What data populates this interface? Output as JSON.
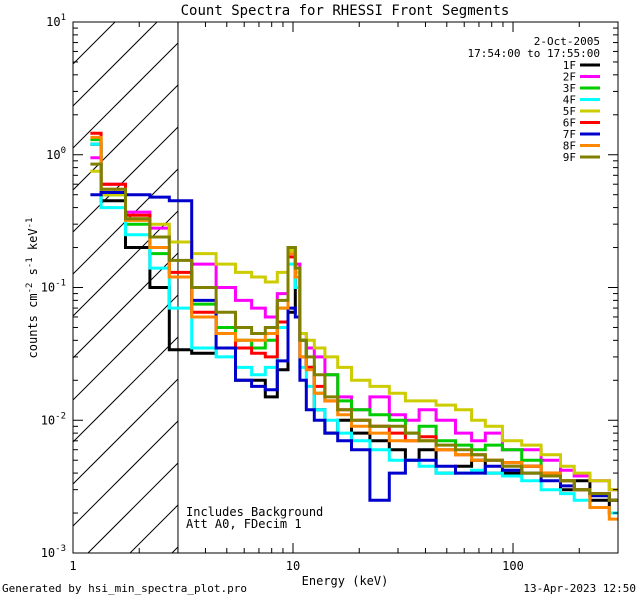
{
  "chart_data": {
    "type": "line",
    "title": "Count Spectra for RHESSI Front Segments",
    "xlabel": "Energy (keV)",
    "ylabel": "counts cm^-2 s^-1 keV^-1",
    "xscale": "log",
    "yscale": "log",
    "xlim": [
      1,
      300
    ],
    "ylim": [
      0.001,
      10
    ],
    "x_ticks": [
      {
        "v": 1,
        "label": "1"
      },
      {
        "v": 10,
        "label": "10"
      },
      {
        "v": 100,
        "label": "100"
      }
    ],
    "y_ticks": [
      {
        "v": 0.001,
        "base": "10",
        "exp": "-3"
      },
      {
        "v": 0.01,
        "base": "10",
        "exp": "-2"
      },
      {
        "v": 0.1,
        "base": "10",
        "exp": "-1"
      },
      {
        "v": 1,
        "base": "10",
        "exp": "0"
      },
      {
        "v": 10,
        "base": "10",
        "exp": "1"
      }
    ],
    "date": "2-Oct-2005",
    "time_range": "17:54:00 to 17:55:00",
    "annotation_lines": [
      "Includes Background",
      "Att A0, FDecim 1"
    ],
    "shaded_region": {
      "xmin": 1,
      "xmax": 3,
      "style": "hatched"
    },
    "series": [
      {
        "name": "1F",
        "color": "#000000",
        "x": [
          1.2,
          1.5,
          2,
          2.5,
          3,
          4,
          5,
          6,
          7,
          8,
          9,
          10,
          10.5,
          11,
          12,
          13,
          15,
          17,
          20,
          25,
          30,
          35,
          40,
          50,
          60,
          70,
          80,
          100,
          120,
          150,
          180,
          200,
          250,
          300
        ],
        "y": [
          1.2,
          0.45,
          0.2,
          0.1,
          0.034,
          0.032,
          0.035,
          0.02,
          0.02,
          0.015,
          0.024,
          0.065,
          0.12,
          0.04,
          0.025,
          0.012,
          0.008,
          0.01,
          0.008,
          0.007,
          0.006,
          0.005,
          0.006,
          0.004,
          0.0045,
          0.005,
          0.004,
          0.004,
          0.0045,
          0.004,
          0.003,
          0.0035,
          0.0025,
          0.002
        ]
      },
      {
        "name": "2F",
        "color": "#ff00ff",
        "x": [
          1.2,
          1.5,
          2,
          2.5,
          3,
          4,
          5,
          6,
          7,
          8,
          9,
          10,
          10.5,
          11,
          12,
          13,
          15,
          17,
          20,
          25,
          30,
          35,
          40,
          50,
          60,
          70,
          80,
          100,
          120,
          150,
          180,
          200,
          250,
          300
        ],
        "y": [
          0.95,
          0.6,
          0.37,
          0.28,
          0.22,
          0.15,
          0.1,
          0.08,
          0.07,
          0.06,
          0.09,
          0.2,
          0.15,
          0.045,
          0.035,
          0.03,
          0.022,
          0.015,
          0.012,
          0.015,
          0.011,
          0.01,
          0.012,
          0.01,
          0.008,
          0.007,
          0.008,
          0.006,
          0.006,
          0.005,
          0.0042,
          0.0038,
          0.0035,
          0.003
        ]
      },
      {
        "name": "3F",
        "color": "#00cc00",
        "x": [
          1.2,
          1.5,
          2,
          2.5,
          3,
          4,
          5,
          6,
          7,
          8,
          9,
          10,
          10.5,
          11,
          12,
          13,
          15,
          17,
          20,
          25,
          30,
          35,
          40,
          50,
          60,
          70,
          80,
          100,
          120,
          150,
          180,
          200,
          250,
          300
        ],
        "y": [
          1.3,
          0.5,
          0.3,
          0.18,
          0.12,
          0.075,
          0.05,
          0.04,
          0.035,
          0.04,
          0.07,
          0.2,
          0.14,
          0.04,
          0.025,
          0.016,
          0.022,
          0.014,
          0.012,
          0.011,
          0.01,
          0.008,
          0.009,
          0.007,
          0.0065,
          0.006,
          0.0065,
          0.006,
          0.005,
          0.004,
          0.0035,
          0.003,
          0.0028,
          0.0025
        ]
      },
      {
        "name": "4F",
        "color": "#00ffff",
        "x": [
          1.2,
          1.5,
          2,
          2.5,
          3,
          4,
          5,
          6,
          7,
          8,
          9,
          10,
          10.5,
          11,
          12,
          13,
          15,
          17,
          20,
          25,
          30,
          35,
          40,
          50,
          60,
          70,
          80,
          100,
          120,
          150,
          180,
          200,
          250,
          300
        ],
        "y": [
          1.2,
          0.4,
          0.25,
          0.14,
          0.07,
          0.035,
          0.03,
          0.025,
          0.022,
          0.025,
          0.05,
          0.15,
          0.1,
          0.025,
          0.018,
          0.012,
          0.01,
          0.008,
          0.007,
          0.006,
          0.005,
          0.005,
          0.0045,
          0.004,
          0.004,
          0.0042,
          0.004,
          0.0038,
          0.0035,
          0.003,
          0.0028,
          0.0025,
          0.0022,
          0.002
        ]
      },
      {
        "name": "5F",
        "color": "#cccc00",
        "x": [
          1.2,
          1.5,
          2,
          2.5,
          3,
          4,
          5,
          6,
          7,
          8,
          9,
          10,
          10.5,
          11,
          12,
          13,
          15,
          17,
          20,
          25,
          30,
          35,
          40,
          50,
          60,
          70,
          80,
          100,
          120,
          150,
          180,
          200,
          250,
          300
        ],
        "y": [
          0.75,
          0.5,
          0.33,
          0.3,
          0.22,
          0.18,
          0.15,
          0.13,
          0.12,
          0.11,
          0.13,
          0.19,
          0.13,
          0.045,
          0.04,
          0.035,
          0.03,
          0.025,
          0.02,
          0.018,
          0.016,
          0.014,
          0.014,
          0.013,
          0.012,
          0.01,
          0.009,
          0.007,
          0.0065,
          0.0055,
          0.0045,
          0.004,
          0.0035,
          0.003
        ]
      },
      {
        "name": "6F",
        "color": "#ff0000",
        "x": [
          1.2,
          1.5,
          2,
          2.5,
          3,
          4,
          5,
          6,
          7,
          8,
          9,
          10,
          10.5,
          11,
          12,
          13,
          15,
          17,
          20,
          25,
          30,
          35,
          40,
          50,
          60,
          70,
          80,
          100,
          120,
          150,
          180,
          200,
          250,
          300
        ],
        "y": [
          1.45,
          0.6,
          0.35,
          0.2,
          0.13,
          0.065,
          0.045,
          0.035,
          0.032,
          0.03,
          0.055,
          0.17,
          0.12,
          0.03,
          0.025,
          0.018,
          0.014,
          0.012,
          0.01,
          0.009,
          0.008,
          0.007,
          0.0075,
          0.006,
          0.0055,
          0.0055,
          0.005,
          0.0048,
          0.0045,
          0.004,
          0.0035,
          0.003,
          0.0028,
          0.0025
        ]
      },
      {
        "name": "7F",
        "color": "#0000cc",
        "x": [
          1.2,
          1.5,
          2,
          2.5,
          3,
          4,
          5,
          6,
          7,
          8,
          9,
          10,
          10.5,
          11,
          12,
          13,
          15,
          17,
          20,
          25,
          30,
          35,
          40,
          50,
          60,
          70,
          80,
          100,
          120,
          150,
          180,
          200,
          250,
          300
        ],
        "y": [
          0.5,
          0.52,
          0.5,
          0.48,
          0.45,
          0.08,
          0.035,
          0.02,
          0.018,
          0.017,
          0.028,
          0.07,
          0.06,
          0.02,
          0.012,
          0.01,
          0.008,
          0.007,
          0.006,
          0.0025,
          0.004,
          0.005,
          0.005,
          0.0045,
          0.004,
          0.004,
          0.0045,
          0.0042,
          0.004,
          0.0035,
          0.0032,
          0.003,
          0.0027,
          0.0025
        ]
      },
      {
        "name": "8F",
        "color": "#ff8800",
        "x": [
          1.2,
          1.5,
          2,
          2.5,
          3,
          4,
          5,
          6,
          7,
          8,
          9,
          10,
          10.5,
          11,
          12,
          13,
          15,
          17,
          20,
          25,
          30,
          35,
          40,
          50,
          60,
          70,
          80,
          100,
          120,
          150,
          180,
          200,
          250,
          300
        ],
        "y": [
          1.35,
          0.55,
          0.32,
          0.2,
          0.12,
          0.06,
          0.045,
          0.04,
          0.04,
          0.045,
          0.07,
          0.18,
          0.12,
          0.03,
          0.024,
          0.016,
          0.014,
          0.011,
          0.009,
          0.008,
          0.007,
          0.007,
          0.007,
          0.006,
          0.0055,
          0.005,
          0.005,
          0.0048,
          0.0045,
          0.004,
          0.0035,
          0.003,
          0.0022,
          0.0018
        ]
      },
      {
        "name": "9F",
        "color": "#808000",
        "x": [
          1.2,
          1.5,
          2,
          2.5,
          3,
          4,
          5,
          6,
          7,
          8,
          9,
          10,
          10.5,
          11,
          12,
          13,
          15,
          17,
          20,
          25,
          30,
          35,
          40,
          50,
          60,
          70,
          80,
          100,
          120,
          150,
          180,
          200,
          250,
          300
        ],
        "y": [
          0.85,
          0.55,
          0.33,
          0.24,
          0.16,
          0.1,
          0.065,
          0.05,
          0.045,
          0.05,
          0.08,
          0.2,
          0.14,
          0.04,
          0.03,
          0.022,
          0.015,
          0.012,
          0.01,
          0.009,
          0.009,
          0.008,
          0.007,
          0.0065,
          0.006,
          0.0055,
          0.005,
          0.0045,
          0.004,
          0.0038,
          0.0035,
          0.003,
          0.0028,
          0.0025
        ]
      }
    ]
  },
  "footer": {
    "generated_by": "Generated by hsi_min_spectra_plot.pro",
    "timestamp": "13-Apr-2023 12:50"
  }
}
